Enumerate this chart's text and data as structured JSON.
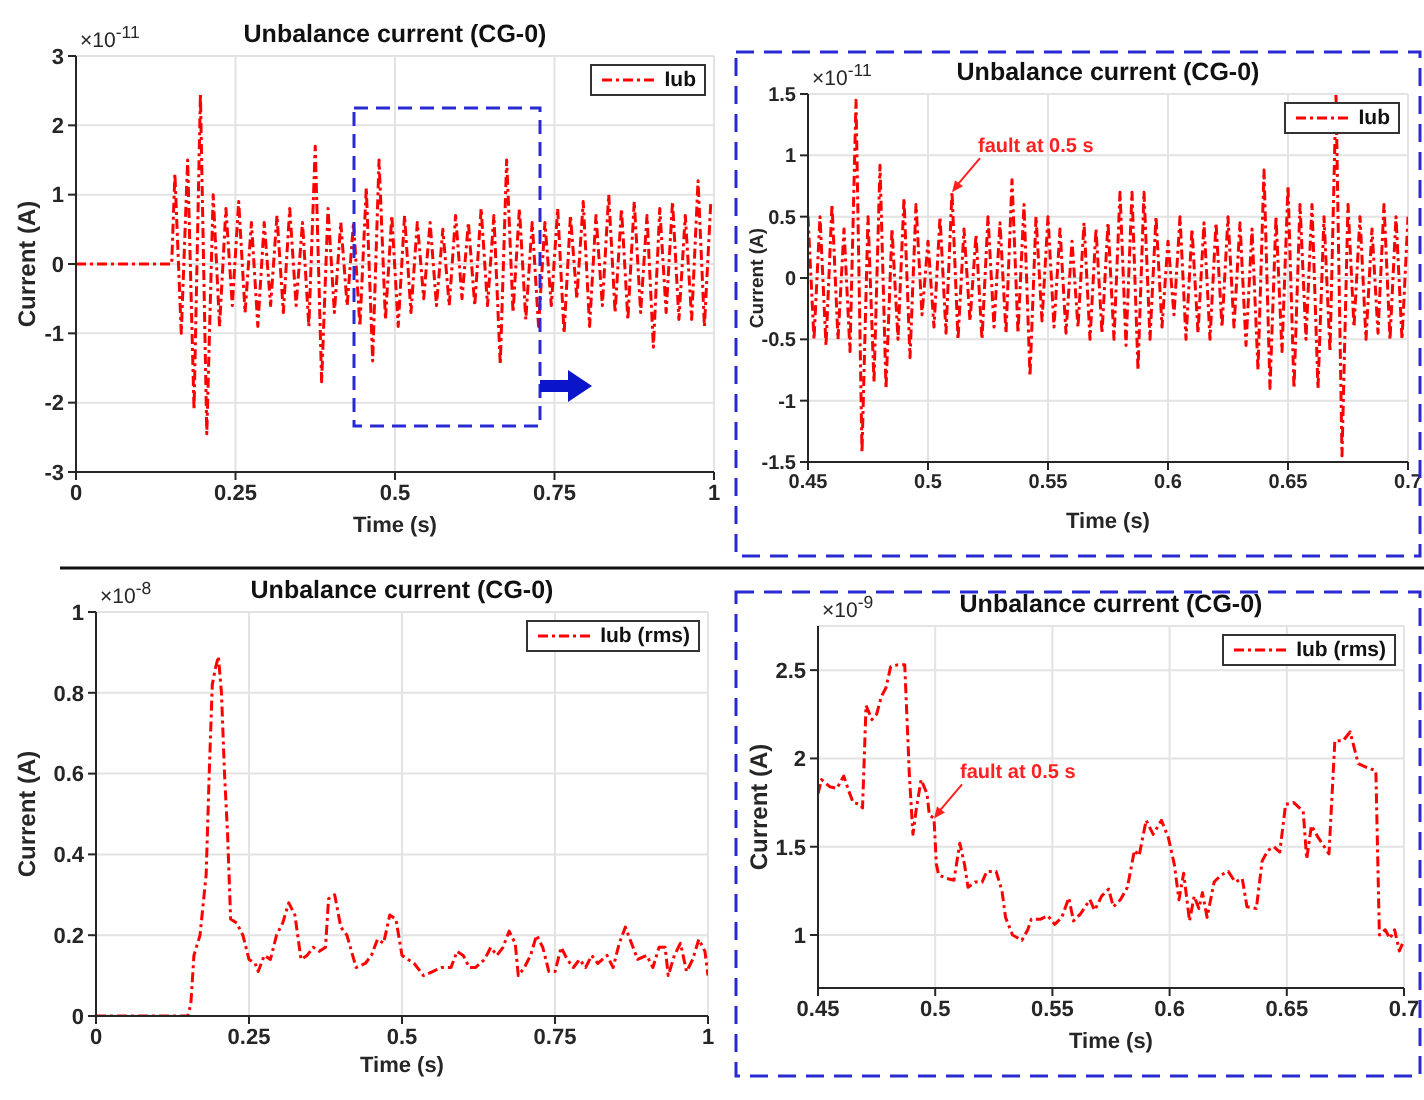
{
  "chart_data": [
    {
      "type": "line",
      "title": "Unbalance current (CG-0)",
      "xlabel": "Time (s)",
      "ylabel": "Current (A)",
      "annotations": [
        "×10$^{-11}$"
      ],
      "xlim": [
        0,
        1
      ],
      "xticks": [
        0,
        0.25,
        0.5,
        0.75,
        1
      ],
      "ylim": [
        -3,
        3
      ],
      "yticks": [
        -3,
        -2,
        -1,
        0,
        1,
        2,
        3
      ],
      "grid": true,
      "legend": "top right",
      "line_style": "dashed",
      "x": [
        0,
        0.15,
        0.155,
        0.165,
        0.175,
        0.185,
        0.195,
        0.205,
        0.215,
        0.225,
        0.235,
        0.245,
        0.255,
        0.265,
        0.275,
        0.285,
        0.295,
        0.305,
        0.315,
        0.325,
        0.335,
        0.345,
        0.355,
        0.365,
        0.375,
        0.385,
        0.395,
        0.405,
        0.415,
        0.425,
        0.435,
        0.445,
        0.455,
        0.465,
        0.475,
        0.485,
        0.495,
        0.505,
        0.515,
        0.525,
        0.535,
        0.545,
        0.555,
        0.565,
        0.575,
        0.585,
        0.595,
        0.605,
        0.615,
        0.625,
        0.635,
        0.645,
        0.655,
        0.665,
        0.675,
        0.685,
        0.695,
        0.705,
        0.715,
        0.725,
        0.735,
        0.745,
        0.755,
        0.765,
        0.775,
        0.785,
        0.795,
        0.805,
        0.815,
        0.825,
        0.835,
        0.845,
        0.855,
        0.865,
        0.875,
        0.885,
        0.895,
        0.905,
        0.915,
        0.925,
        0.935,
        0.945,
        0.955,
        0.965,
        0.975,
        0.985,
        0.995
      ],
      "series": [
        {
          "name": "Iub",
          "color": "#ff0000",
          "values": [
            0,
            0,
            1.3,
            -1.0,
            1.5,
            -2.1,
            2.45,
            -2.45,
            1.0,
            -0.9,
            0.8,
            -0.6,
            0.9,
            -0.7,
            0.6,
            -0.9,
            0.6,
            -0.6,
            0.7,
            -0.7,
            0.8,
            -0.6,
            0.6,
            -0.9,
            1.7,
            -1.7,
            0.8,
            -0.7,
            0.6,
            -0.6,
            0.6,
            -0.9,
            1.1,
            -1.4,
            1.5,
            -0.8,
            0.7,
            -0.9,
            0.7,
            -0.7,
            0.6,
            -0.5,
            0.6,
            -0.6,
            0.5,
            -0.6,
            0.7,
            -0.5,
            0.6,
            -0.6,
            0.8,
            -0.6,
            0.7,
            -1.45,
            1.5,
            -0.7,
            0.8,
            -0.8,
            0.6,
            -0.9,
            0.6,
            -0.6,
            0.8,
            -1.0,
            0.7,
            -0.5,
            0.9,
            -0.9,
            0.7,
            -0.6,
            1.0,
            -0.7,
            0.8,
            -0.8,
            0.9,
            -0.7,
            0.7,
            -1.2,
            0.8,
            -0.7,
            0.9,
            -0.8,
            0.7,
            -0.8,
            1.2,
            -0.9,
            0.9
          ]
        }
      ]
    },
    {
      "type": "line",
      "title": "Unbalance current (CG-0)",
      "xlabel": "Time (s)",
      "ylabel": "Current (A)",
      "annotations": [
        "×10$^{-11}$",
        {
          "text": "fault at 0.5 s",
          "x": 0.51,
          "y": 0.7
        }
      ],
      "xlim": [
        0.45,
        0.7
      ],
      "xticks": [
        0.45,
        0.5,
        0.55,
        0.6,
        0.65,
        0.7
      ],
      "ylim": [
        -1.5,
        1.5
      ],
      "yticks": [
        -1.5,
        -1,
        -0.5,
        0,
        0.5,
        1,
        1.5
      ],
      "grid": true,
      "legend": "top right",
      "line_style": "dashed",
      "x": [
        0.45,
        0.4525,
        0.455,
        0.4575,
        0.46,
        0.4625,
        0.465,
        0.4675,
        0.47,
        0.4725,
        0.475,
        0.4775,
        0.48,
        0.4825,
        0.485,
        0.4875,
        0.49,
        0.4925,
        0.495,
        0.4975,
        0.5,
        0.5025,
        0.505,
        0.5075,
        0.51,
        0.5125,
        0.515,
        0.5175,
        0.52,
        0.5225,
        0.525,
        0.5275,
        0.53,
        0.5325,
        0.535,
        0.5375,
        0.54,
        0.5425,
        0.545,
        0.5475,
        0.55,
        0.5525,
        0.555,
        0.5575,
        0.56,
        0.5625,
        0.565,
        0.5675,
        0.57,
        0.5725,
        0.575,
        0.5775,
        0.58,
        0.5825,
        0.585,
        0.5875,
        0.59,
        0.5925,
        0.595,
        0.5975,
        0.6,
        0.6025,
        0.605,
        0.6075,
        0.61,
        0.6125,
        0.615,
        0.6175,
        0.62,
        0.6225,
        0.625,
        0.6275,
        0.63,
        0.6325,
        0.635,
        0.6375,
        0.64,
        0.6425,
        0.645,
        0.6475,
        0.65,
        0.6525,
        0.655,
        0.6575,
        0.66,
        0.6625,
        0.665,
        0.6675,
        0.67,
        0.6725,
        0.675,
        0.6775,
        0.68,
        0.6825,
        0.685,
        0.6875,
        0.69,
        0.6925,
        0.695,
        0.6975,
        0.7
      ],
      "series": [
        {
          "name": "Iub",
          "color": "#ff0000",
          "values": [
            0.5,
            -0.5,
            0.5,
            -0.55,
            0.6,
            -0.5,
            0.4,
            -0.6,
            1.45,
            -1.42,
            0.5,
            -0.85,
            0.92,
            -0.9,
            0.4,
            -0.5,
            0.65,
            -0.65,
            0.6,
            -0.3,
            0.3,
            -0.4,
            0.5,
            -0.45,
            0.7,
            -0.5,
            0.4,
            -0.35,
            0.35,
            -0.5,
            0.5,
            -0.4,
            0.45,
            -0.45,
            0.8,
            -0.45,
            0.6,
            -0.8,
            0.5,
            -0.35,
            0.5,
            -0.4,
            0.4,
            -0.45,
            0.3,
            -0.4,
            0.45,
            -0.5,
            0.4,
            -0.45,
            0.45,
            -0.5,
            0.7,
            -0.55,
            0.7,
            -0.75,
            0.7,
            -0.5,
            0.5,
            -0.4,
            0.3,
            -0.3,
            0.5,
            -0.5,
            0.4,
            -0.45,
            0.45,
            -0.5,
            0.45,
            -0.4,
            0.5,
            -0.4,
            0.45,
            -0.55,
            0.4,
            -0.75,
            0.88,
            -0.9,
            0.5,
            -0.6,
            0.75,
            -0.9,
            0.6,
            -0.5,
            0.6,
            -0.9,
            0.5,
            -0.6,
            1.5,
            -1.45,
            0.6,
            -0.4,
            0.5,
            -0.5,
            0.4,
            -0.45,
            0.6,
            -0.5,
            0.5,
            -0.5,
            0.5
          ]
        }
      ]
    },
    {
      "type": "line",
      "title": "Unbalance current (CG-0)",
      "xlabel": "Time (s)",
      "ylabel": "Current (A)",
      "annotations": [
        "×10$^{-8}$"
      ],
      "xlim": [
        0,
        1
      ],
      "xticks": [
        0,
        0.25,
        0.5,
        0.75,
        1
      ],
      "ylim": [
        0,
        1
      ],
      "yticks": [
        0,
        0.2,
        0.4,
        0.6,
        0.8,
        1
      ],
      "grid": true,
      "legend": "top right",
      "line_style": "dashed",
      "x": [
        0,
        0.15,
        0.155,
        0.16,
        0.17,
        0.18,
        0.185,
        0.19,
        0.195,
        0.2,
        0.205,
        0.21,
        0.215,
        0.22,
        0.23,
        0.24,
        0.25,
        0.26,
        0.265,
        0.275,
        0.285,
        0.295,
        0.305,
        0.315,
        0.325,
        0.335,
        0.345,
        0.355,
        0.365,
        0.375,
        0.38,
        0.39,
        0.4,
        0.41,
        0.425,
        0.44,
        0.45,
        0.46,
        0.47,
        0.48,
        0.49,
        0.5,
        0.51,
        0.52,
        0.535,
        0.55,
        0.565,
        0.58,
        0.59,
        0.6,
        0.61,
        0.62,
        0.635,
        0.645,
        0.655,
        0.665,
        0.675,
        0.685,
        0.69,
        0.7,
        0.71,
        0.72,
        0.73,
        0.74,
        0.75,
        0.76,
        0.77,
        0.78,
        0.79,
        0.8,
        0.81,
        0.82,
        0.835,
        0.845,
        0.855,
        0.865,
        0.875,
        0.885,
        0.9,
        0.91,
        0.92,
        0.93,
        0.935,
        0.945,
        0.955,
        0.965,
        0.975,
        0.985,
        0.995,
        1
      ],
      "series": [
        {
          "name": "Iub (rms)",
          "color": "#ff0000",
          "values": [
            0,
            0,
            0.03,
            0.15,
            0.2,
            0.35,
            0.6,
            0.82,
            0.86,
            0.89,
            0.8,
            0.6,
            0.45,
            0.24,
            0.23,
            0.2,
            0.14,
            0.13,
            0.11,
            0.15,
            0.14,
            0.2,
            0.23,
            0.28,
            0.25,
            0.14,
            0.15,
            0.17,
            0.16,
            0.17,
            0.29,
            0.3,
            0.22,
            0.2,
            0.12,
            0.13,
            0.15,
            0.19,
            0.18,
            0.25,
            0.24,
            0.15,
            0.14,
            0.13,
            0.1,
            0.11,
            0.12,
            0.12,
            0.16,
            0.15,
            0.12,
            0.12,
            0.14,
            0.17,
            0.15,
            0.17,
            0.21,
            0.18,
            0.1,
            0.12,
            0.15,
            0.2,
            0.17,
            0.11,
            0.11,
            0.17,
            0.14,
            0.12,
            0.14,
            0.12,
            0.15,
            0.13,
            0.15,
            0.12,
            0.18,
            0.22,
            0.18,
            0.14,
            0.15,
            0.12,
            0.17,
            0.17,
            0.1,
            0.15,
            0.18,
            0.11,
            0.14,
            0.19,
            0.16,
            0.1
          ]
        }
      ]
    },
    {
      "type": "line",
      "title": "Unbalance current (CG-0)",
      "xlabel": "Time (s)",
      "ylabel": "Current (A)",
      "annotations": [
        "×10$^{-9}$",
        {
          "text": "fault at 0.5 s",
          "x": 0.4995,
          "y": 1.66
        }
      ],
      "xlim": [
        0.45,
        0.7
      ],
      "xticks": [
        0.45,
        0.5,
        0.55,
        0.6,
        0.65,
        0.7
      ],
      "ylim": [
        0.7,
        2.75
      ],
      "yticks": [
        1,
        1.5,
        2,
        2.5
      ],
      "grid": true,
      "legend": "top right",
      "line_style": "dashed",
      "x": [
        0.45,
        0.4515,
        0.455,
        0.458,
        0.461,
        0.463,
        0.465,
        0.468,
        0.469,
        0.4705,
        0.473,
        0.475,
        0.477,
        0.479,
        0.481,
        0.484,
        0.487,
        0.489,
        0.4905,
        0.492,
        0.494,
        0.4965,
        0.4975,
        0.4995,
        0.5005,
        0.5015,
        0.505,
        0.508,
        0.5105,
        0.5125,
        0.514,
        0.517,
        0.52,
        0.522,
        0.526,
        0.5285,
        0.53,
        0.533,
        0.537,
        0.5395,
        0.541,
        0.545,
        0.548,
        0.551,
        0.554,
        0.557,
        0.559,
        0.562,
        0.566,
        0.568,
        0.571,
        0.574,
        0.576,
        0.579,
        0.582,
        0.585,
        0.587,
        0.59,
        0.593,
        0.5965,
        0.5995,
        0.602,
        0.604,
        0.606,
        0.6085,
        0.6105,
        0.6125,
        0.614,
        0.616,
        0.619,
        0.622,
        0.625,
        0.628,
        0.631,
        0.633,
        0.637,
        0.6395,
        0.642,
        0.6445,
        0.647,
        0.6495,
        0.653,
        0.657,
        0.6585,
        0.6605,
        0.6635,
        0.666,
        0.668,
        0.6705,
        0.674,
        0.677,
        0.6805,
        0.684,
        0.688,
        0.6895,
        0.692,
        0.694,
        0.696,
        0.698,
        0.7
      ],
      "series": [
        {
          "name": "Iub (rms)",
          "color": "#ff0000",
          "values": [
            1.8,
            1.88,
            1.84,
            1.83,
            1.9,
            1.82,
            1.75,
            1.74,
            1.72,
            2.3,
            2.22,
            2.25,
            2.35,
            2.4,
            2.52,
            2.53,
            2.53,
            1.9,
            1.57,
            1.72,
            1.88,
            1.8,
            1.68,
            1.66,
            1.4,
            1.34,
            1.32,
            1.31,
            1.52,
            1.4,
            1.27,
            1.3,
            1.3,
            1.36,
            1.36,
            1.25,
            1.1,
            1.0,
            0.97,
            1.03,
            1.09,
            1.09,
            1.11,
            1.06,
            1.1,
            1.21,
            1.08,
            1.12,
            1.2,
            1.14,
            1.22,
            1.26,
            1.16,
            1.2,
            1.27,
            1.48,
            1.45,
            1.65,
            1.57,
            1.65,
            1.55,
            1.4,
            1.2,
            1.35,
            1.08,
            1.22,
            1.15,
            1.24,
            1.1,
            1.3,
            1.34,
            1.36,
            1.3,
            1.32,
            1.16,
            1.15,
            1.42,
            1.48,
            1.5,
            1.47,
            1.74,
            1.75,
            1.7,
            1.43,
            1.62,
            1.55,
            1.5,
            1.46,
            2.1,
            2.1,
            2.15,
            1.97,
            1.95,
            1.93,
            1.0,
            1.03,
            0.98,
            1.03,
            0.91,
            0.97
          ]
        }
      ]
    }
  ]
}
